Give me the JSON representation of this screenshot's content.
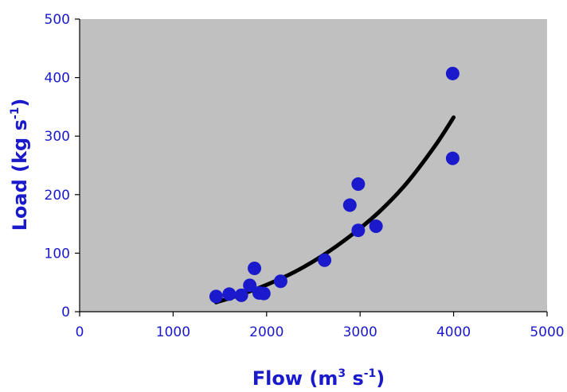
{
  "chart_data": {
    "type": "scatter",
    "title": "",
    "xlabel": {
      "main": "Flow (m",
      "sup1": "3",
      "mid": " s",
      "sup2": "-1",
      "end": ")"
    },
    "ylabel": {
      "main": "Load (kg s",
      "sup": "-1",
      "end": ")"
    },
    "xlim": [
      0,
      5000
    ],
    "ylim": [
      0,
      500
    ],
    "xticks": [
      "0",
      "1000",
      "2000",
      "3000",
      "4000",
      "5000"
    ],
    "yticks": [
      "0",
      "100",
      "200",
      "300",
      "400",
      "500"
    ],
    "grid": false,
    "plot_background": "#c0c0c0",
    "colors": {
      "points": "#1a1acc",
      "trendline": "#000000",
      "text": "#1a1acc"
    },
    "series": [
      {
        "type": "scatter",
        "points": [
          [
            1460,
            26
          ],
          [
            1600,
            30
          ],
          [
            1730,
            28
          ],
          [
            1820,
            45
          ],
          [
            1870,
            74
          ],
          [
            1920,
            32
          ],
          [
            1970,
            31
          ],
          [
            2150,
            52
          ],
          [
            2620,
            88
          ],
          [
            2890,
            182
          ],
          [
            2980,
            218
          ],
          [
            2980,
            139
          ],
          [
            3170,
            146
          ],
          [
            3990,
            407
          ],
          [
            3990,
            262
          ]
        ]
      },
      {
        "type": "trendline",
        "fit": "power",
        "points": [
          [
            1460,
            16
          ],
          [
            1700,
            28
          ],
          [
            2000,
            46
          ],
          [
            2300,
            68
          ],
          [
            2600,
            96
          ],
          [
            2900,
            130
          ],
          [
            3200,
            170
          ],
          [
            3500,
            220
          ],
          [
            3800,
            283
          ],
          [
            4000,
            332
          ]
        ]
      }
    ]
  }
}
